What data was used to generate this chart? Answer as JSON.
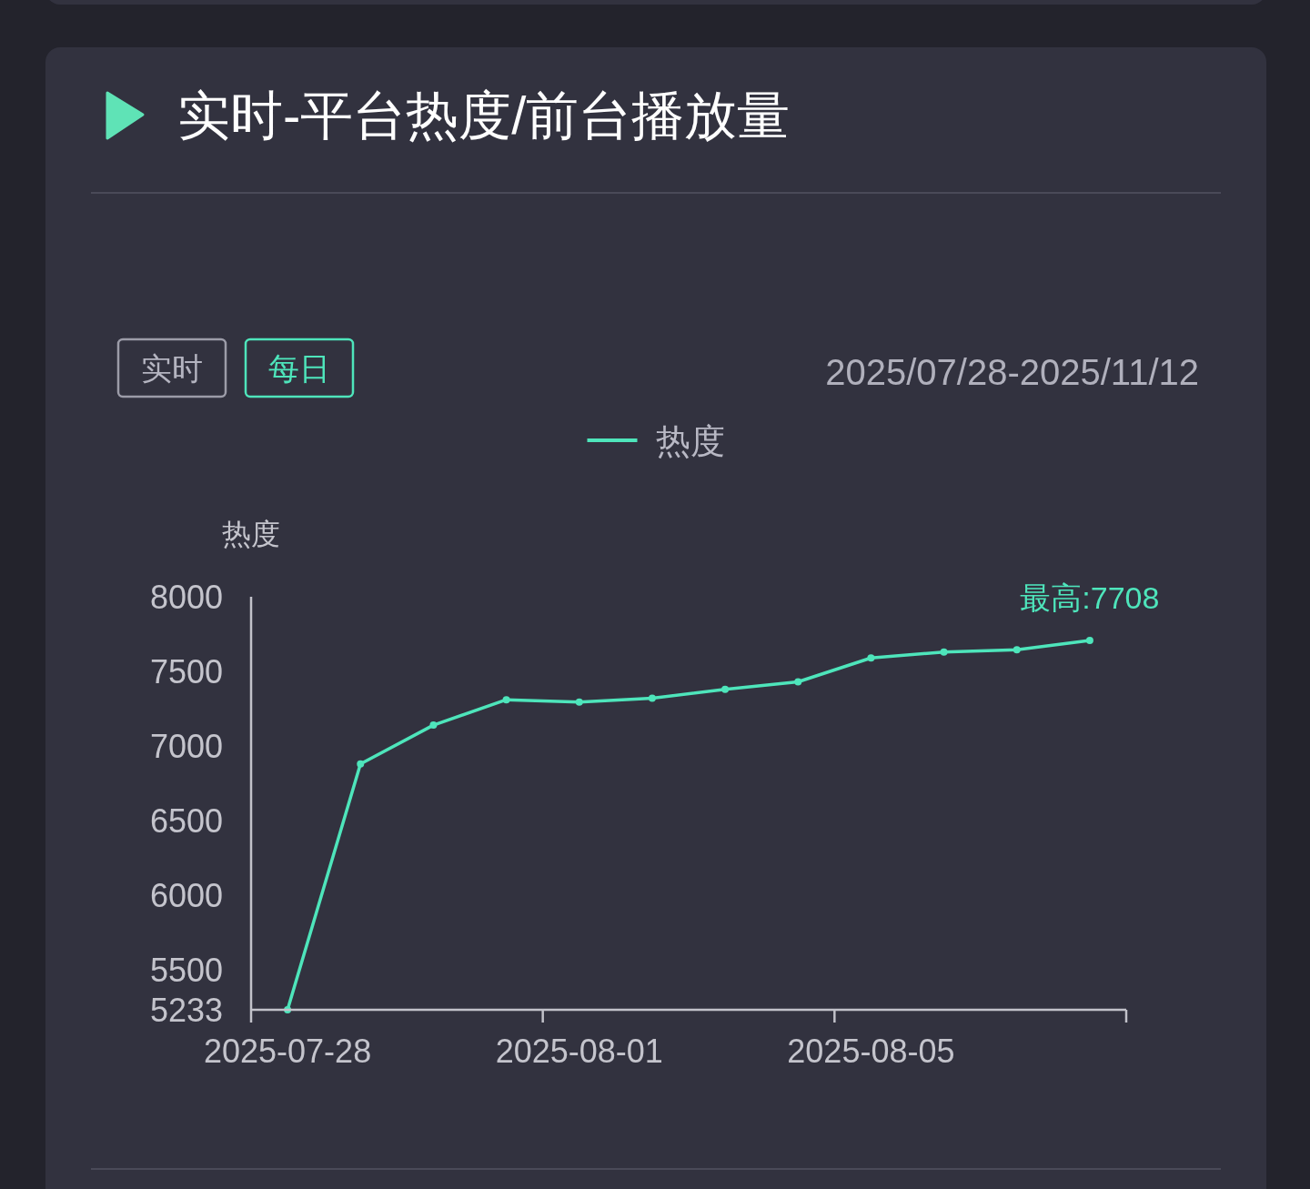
{
  "chart_data": {
    "type": "line",
    "title": "实时-平台热度/前台播放量",
    "annotations": [
      "实时",
      "每日",
      "2025/07/28-2025/11/12"
    ],
    "ylabel": "热度",
    "categories": [
      "2025-07-28",
      null,
      null,
      null,
      "2025-08-01",
      null,
      null,
      null,
      "2025-08-05",
      null,
      null,
      null
    ],
    "series": [
      {
        "name": "热度",
        "color": "#4ee5bb",
        "values": [
          5233,
          6880,
          7140,
          7310,
          7295,
          7320,
          7380,
          7430,
          7590,
          7630,
          7645,
          7708
        ],
        "value_labels": [
          null,
          null,
          null,
          null,
          null,
          null,
          null,
          null,
          null,
          null,
          null,
          "最高:7708"
        ]
      }
    ],
    "ylim": [
      5233,
      8000
    ],
    "yticks": [
      5233,
      5500,
      6000,
      6500,
      7000,
      7500,
      8000
    ],
    "legend": "top",
    "marker": "circle"
  }
}
